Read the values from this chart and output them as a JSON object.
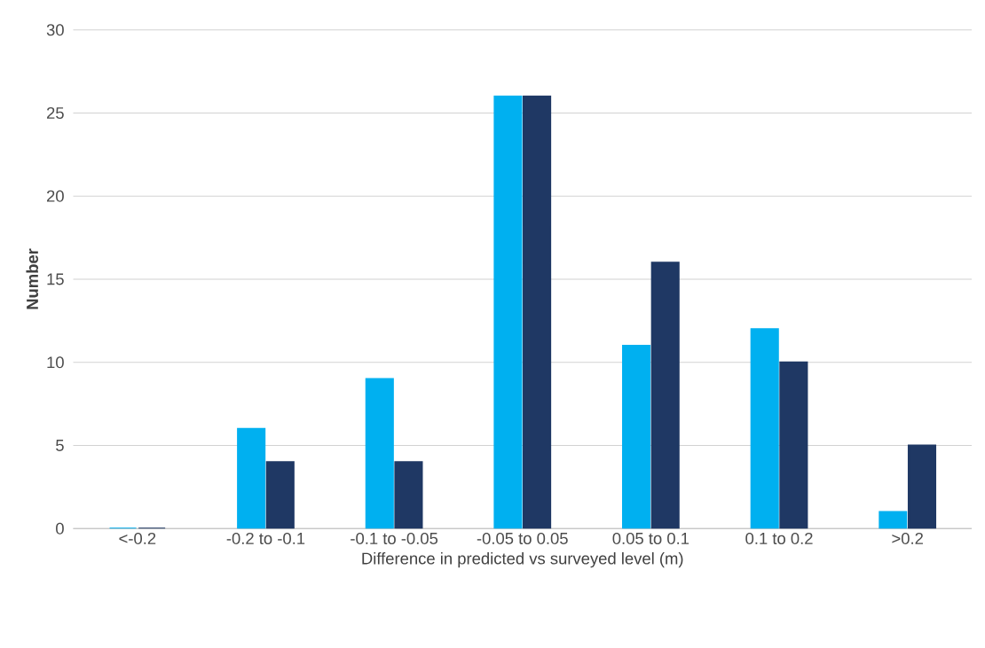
{
  "chart_data": {
    "type": "bar",
    "xlabel": "Difference in predicted vs surveyed level (m)",
    "ylabel": "Number",
    "categories": [
      "<-0.2",
      "-0.2 to -0.1",
      "-0.1 to -0.05",
      "-0.05 to 0.05",
      "0.05 to 0.1",
      "0.1 to 0.2",
      ">0.2"
    ],
    "series": [
      {
        "color": "#00b0f0",
        "values": [
          0,
          6,
          9,
          26,
          11,
          12,
          1
        ]
      },
      {
        "color": "#1f3864",
        "values": [
          0,
          4,
          4,
          26,
          16,
          10,
          5
        ]
      }
    ],
    "ylim": [
      0,
      30
    ],
    "yticks": [
      0,
      5,
      10,
      15,
      20,
      25,
      30
    ],
    "grid": "y"
  }
}
